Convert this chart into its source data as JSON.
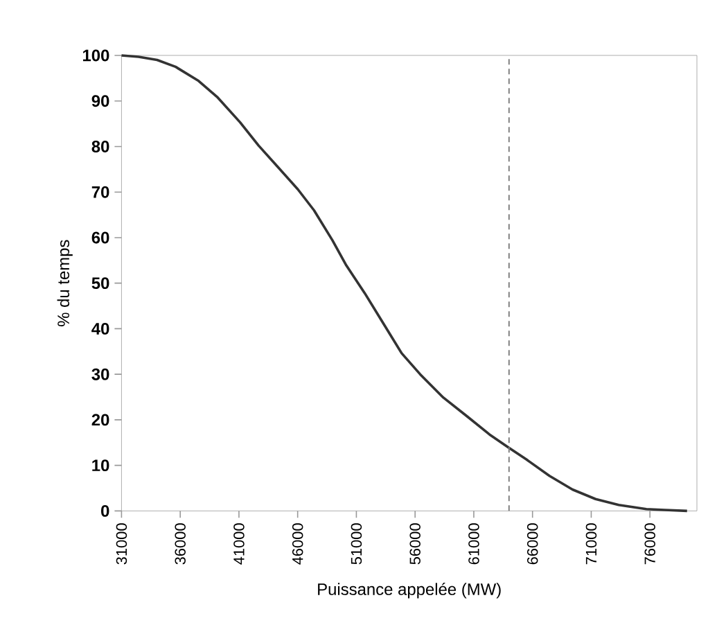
{
  "chart_data": {
    "type": "line",
    "xlabel": "Puissance appelée (MW)",
    "ylabel": "% du temps",
    "x": [
      31000,
      32455,
      34027,
      35600,
      37565,
      39138,
      41102,
      42675,
      44247,
      46016,
      47392,
      48964,
      50143,
      51715,
      53287,
      54860,
      56432,
      58397,
      60363,
      62330,
      63900,
      65476,
      67440,
      69405,
      71370,
      73340,
      75700,
      77270,
      79160
    ],
    "series": [
      {
        "color": "#333333",
        "values": [
          100,
          99.7,
          99.0,
          97.5,
          94.4,
          90.9,
          85.3,
          80.2,
          75.7,
          70.6,
          66.0,
          59.4,
          53.9,
          47.8,
          41.2,
          34.6,
          30.0,
          24.9,
          20.9,
          16.8,
          14.0,
          11.3,
          7.7,
          4.7,
          2.6,
          1.3,
          0.4,
          0.2,
          0
        ]
      }
    ],
    "xlim": [
      31000,
      80000
    ],
    "ylim": [
      0,
      100
    ],
    "xticks": [
      31000,
      36000,
      41000,
      46000,
      51000,
      56000,
      61000,
      66000,
      71000,
      76000
    ],
    "yticks": [
      0,
      10,
      20,
      30,
      40,
      50,
      60,
      70,
      80,
      90,
      100
    ],
    "ref_lines": [
      {
        "axis": "x",
        "value": 64000,
        "color": "#808080",
        "line_style": "dashed"
      }
    ],
    "grid": false,
    "marker": "none",
    "line_style": "solid"
  }
}
